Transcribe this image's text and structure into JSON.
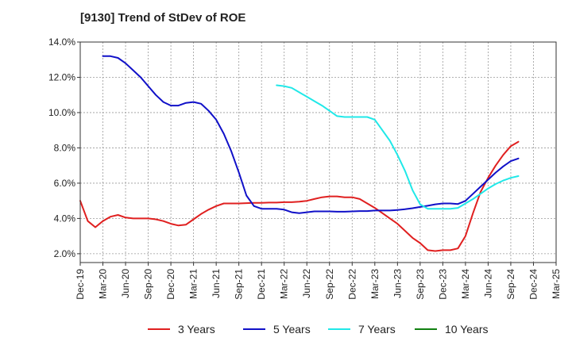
{
  "chart_data": {
    "type": "line",
    "title": "[9130]  Trend of StDev of ROE",
    "xlabel": "",
    "ylabel": "",
    "ylim": [
      1.5,
      14.0
    ],
    "grid": true,
    "legend_position": "bottom",
    "y_ticks": [
      {
        "value": 2,
        "label": "2.0%"
      },
      {
        "value": 4,
        "label": "4.0%"
      },
      {
        "value": 6,
        "label": "6.0%"
      },
      {
        "value": 8,
        "label": "8.0%"
      },
      {
        "value": 10,
        "label": "10.0%"
      },
      {
        "value": 12,
        "label": "12.0%"
      },
      {
        "value": 14,
        "label": "14.0%"
      }
    ],
    "x_ticks": [
      "Dec-19",
      "Mar-20",
      "Jun-20",
      "Sep-20",
      "Dec-20",
      "Mar-21",
      "Jun-21",
      "Sep-21",
      "Dec-21",
      "Mar-22",
      "Jun-22",
      "Sep-22",
      "Dec-22",
      "Mar-23",
      "Jun-23",
      "Sep-23",
      "Dec-23",
      "Mar-24",
      "Jun-24",
      "Sep-24",
      "Dec-24",
      "Mar-25"
    ],
    "series": [
      {
        "name": "3 Years",
        "color": "#e02020",
        "values": [
          5.0,
          3.85,
          3.5,
          3.85,
          4.1,
          4.2,
          4.05,
          4.0,
          4.0,
          4.0,
          3.95,
          3.85,
          3.7,
          3.6,
          3.65,
          3.95,
          4.25,
          4.5,
          4.7,
          4.85,
          4.85,
          4.85,
          4.87,
          4.88,
          4.88,
          4.9,
          4.9,
          4.92,
          4.92,
          4.95,
          5.0,
          5.1,
          5.2,
          5.25,
          5.25,
          5.2,
          5.2,
          5.1,
          4.85,
          4.6,
          4.3,
          4.0,
          3.7,
          3.3,
          2.9,
          2.6,
          2.2,
          2.15,
          2.2,
          2.2,
          2.3,
          3.0,
          4.3,
          5.5,
          6.3,
          7.0,
          7.6,
          8.1,
          8.35
        ]
      },
      {
        "name": "5 Years",
        "color": "#1010c8",
        "values": [
          null,
          null,
          null,
          13.2,
          13.2,
          13.1,
          12.8,
          12.4,
          12.0,
          11.5,
          11.0,
          10.6,
          10.4,
          10.4,
          10.55,
          10.6,
          10.5,
          10.1,
          9.6,
          8.8,
          7.8,
          6.6,
          5.3,
          4.7,
          4.55,
          4.55,
          4.55,
          4.5,
          4.35,
          4.3,
          4.35,
          4.4,
          4.4,
          4.4,
          4.38,
          4.38,
          4.4,
          4.42,
          4.42,
          4.45,
          4.45,
          4.45,
          4.48,
          4.52,
          4.58,
          4.65,
          4.72,
          4.8,
          4.85,
          4.85,
          4.82,
          5.0,
          5.4,
          5.8,
          6.2,
          6.6,
          6.95,
          7.25,
          7.4
        ]
      },
      {
        "name": "7 Years",
        "color": "#20e8e8",
        "values": [
          null,
          null,
          null,
          null,
          null,
          null,
          null,
          null,
          null,
          null,
          null,
          null,
          null,
          null,
          null,
          null,
          null,
          null,
          null,
          null,
          null,
          null,
          null,
          null,
          null,
          null,
          11.55,
          11.5,
          11.4,
          11.15,
          10.9,
          10.65,
          10.4,
          10.1,
          9.8,
          9.75,
          9.75,
          9.75,
          9.75,
          9.6,
          9.0,
          8.4,
          7.6,
          6.7,
          5.6,
          4.8,
          4.55,
          4.55,
          4.55,
          4.55,
          4.6,
          4.85,
          5.1,
          5.4,
          5.7,
          5.95,
          6.15,
          6.3,
          6.4
        ]
      },
      {
        "name": "10 Years",
        "color": "#108010",
        "values": []
      }
    ]
  }
}
